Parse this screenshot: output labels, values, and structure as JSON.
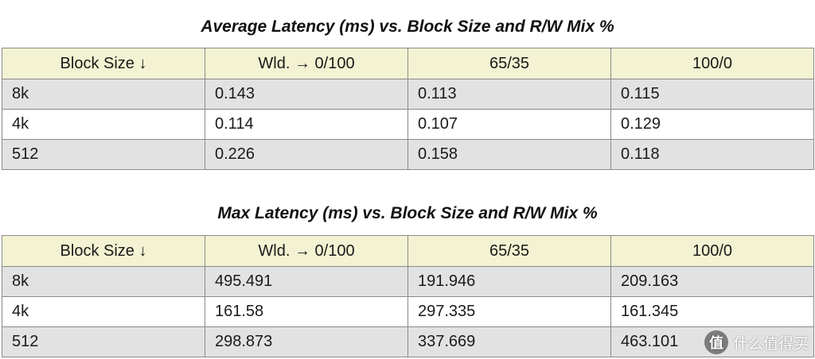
{
  "chart_data": [
    {
      "type": "table",
      "title": "Average Latency (ms) vs. Block Size and R/W Mix %",
      "columns": [
        "Block Size ↓",
        "Wld. → 0/100",
        "65/35",
        "100/0"
      ],
      "rows": [
        [
          "8k",
          "0.143",
          "0.113",
          "0.115"
        ],
        [
          "4k",
          "0.114",
          "0.107",
          "0.129"
        ],
        [
          "512",
          "0.226",
          "0.158",
          "0.118"
        ]
      ]
    },
    {
      "type": "table",
      "title": "Max Latency (ms) vs. Block Size and R/W Mix %",
      "columns": [
        "Block Size ↓",
        "Wld. → 0/100",
        "65/35",
        "100/0"
      ],
      "rows": [
        [
          "8k",
          "495.491",
          "191.946",
          "209.163"
        ],
        [
          "4k",
          "161.58",
          "297.335",
          "161.345"
        ],
        [
          "512",
          "298.873",
          "337.669",
          "463.101"
        ]
      ]
    }
  ],
  "colors": {
    "header_bg": "#f3f2d2",
    "shaded_row_bg": "#e2e2e2",
    "plain_row_bg": "#ffffff",
    "border": "#8a8a8a"
  },
  "watermark": {
    "icon": "zhi-icon",
    "icon_text": "值",
    "text": "什么值得买"
  }
}
